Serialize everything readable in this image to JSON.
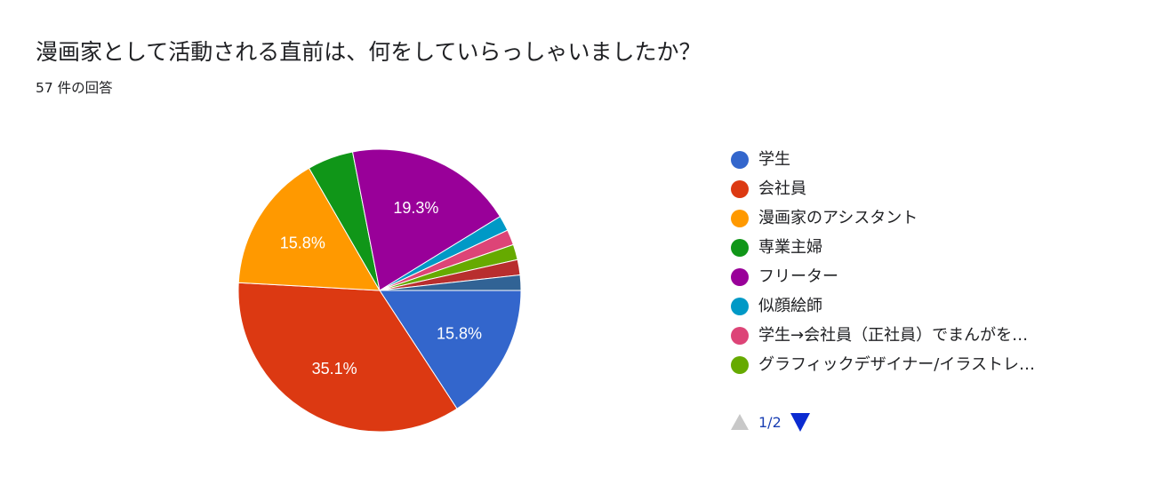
{
  "title": "漫画家として活動される直前は、何をしていらっしゃいましたか？",
  "response_count": "57 件の回答",
  "chart_data": {
    "type": "pie",
    "total": 57,
    "categories": [
      "学生",
      "会社員",
      "漫画家のアシスタント",
      "専業主婦",
      "フリーター",
      "似顔絵師",
      "学生→会社員（正社員）でまんがを…",
      "グラフィックデザイナー/イラストレ…"
    ],
    "slices": [
      {
        "label": "学生",
        "value": 9,
        "percent_label": "15.8%",
        "color": "#3366cc"
      },
      {
        "label": "会社員",
        "value": 20,
        "percent_label": "35.1%",
        "color": "#dc3912"
      },
      {
        "label": "漫画家のアシスタント",
        "value": 9,
        "percent_label": "15.8%",
        "color": "#ff9900"
      },
      {
        "label": "専業主婦",
        "value": 3,
        "percent_label": "",
        "color": "#109618"
      },
      {
        "label": "フリーター",
        "value": 11,
        "percent_label": "19.3%",
        "color": "#990099"
      },
      {
        "label": "似顔絵師",
        "value": 1,
        "percent_label": "",
        "color": "#0099c6"
      },
      {
        "label": "学生→会社員（正社員）でまんがを…",
        "value": 1,
        "percent_label": "",
        "color": "#dd4477"
      },
      {
        "label": "グラフィックデザイナー/イラストレ…",
        "value": 1,
        "percent_label": "",
        "color": "#66aa00"
      },
      {
        "label": "",
        "value": 1,
        "percent_label": "",
        "color": "#b82e2e"
      },
      {
        "label": "",
        "value": 1,
        "percent_label": "",
        "color": "#316395"
      }
    ],
    "legend_position": "right"
  },
  "legend": {
    "page": "1/2",
    "items": [
      {
        "label": "学生",
        "color": "#3366cc"
      },
      {
        "label": "会社員",
        "color": "#dc3912"
      },
      {
        "label": "漫画家のアシスタント",
        "color": "#ff9900"
      },
      {
        "label": "専業主婦",
        "color": "#109618"
      },
      {
        "label": "フリーター",
        "color": "#990099"
      },
      {
        "label": "似顔絵師",
        "color": "#0099c6"
      },
      {
        "label": "学生→会社員（正社員）でまんがを…",
        "color": "#dd4477"
      },
      {
        "label": "グラフィックデザイナー/イラストレ…",
        "color": "#66aa00"
      }
    ],
    "prev_icon": "triangle-up-icon",
    "next_icon": "triangle-down-icon"
  }
}
